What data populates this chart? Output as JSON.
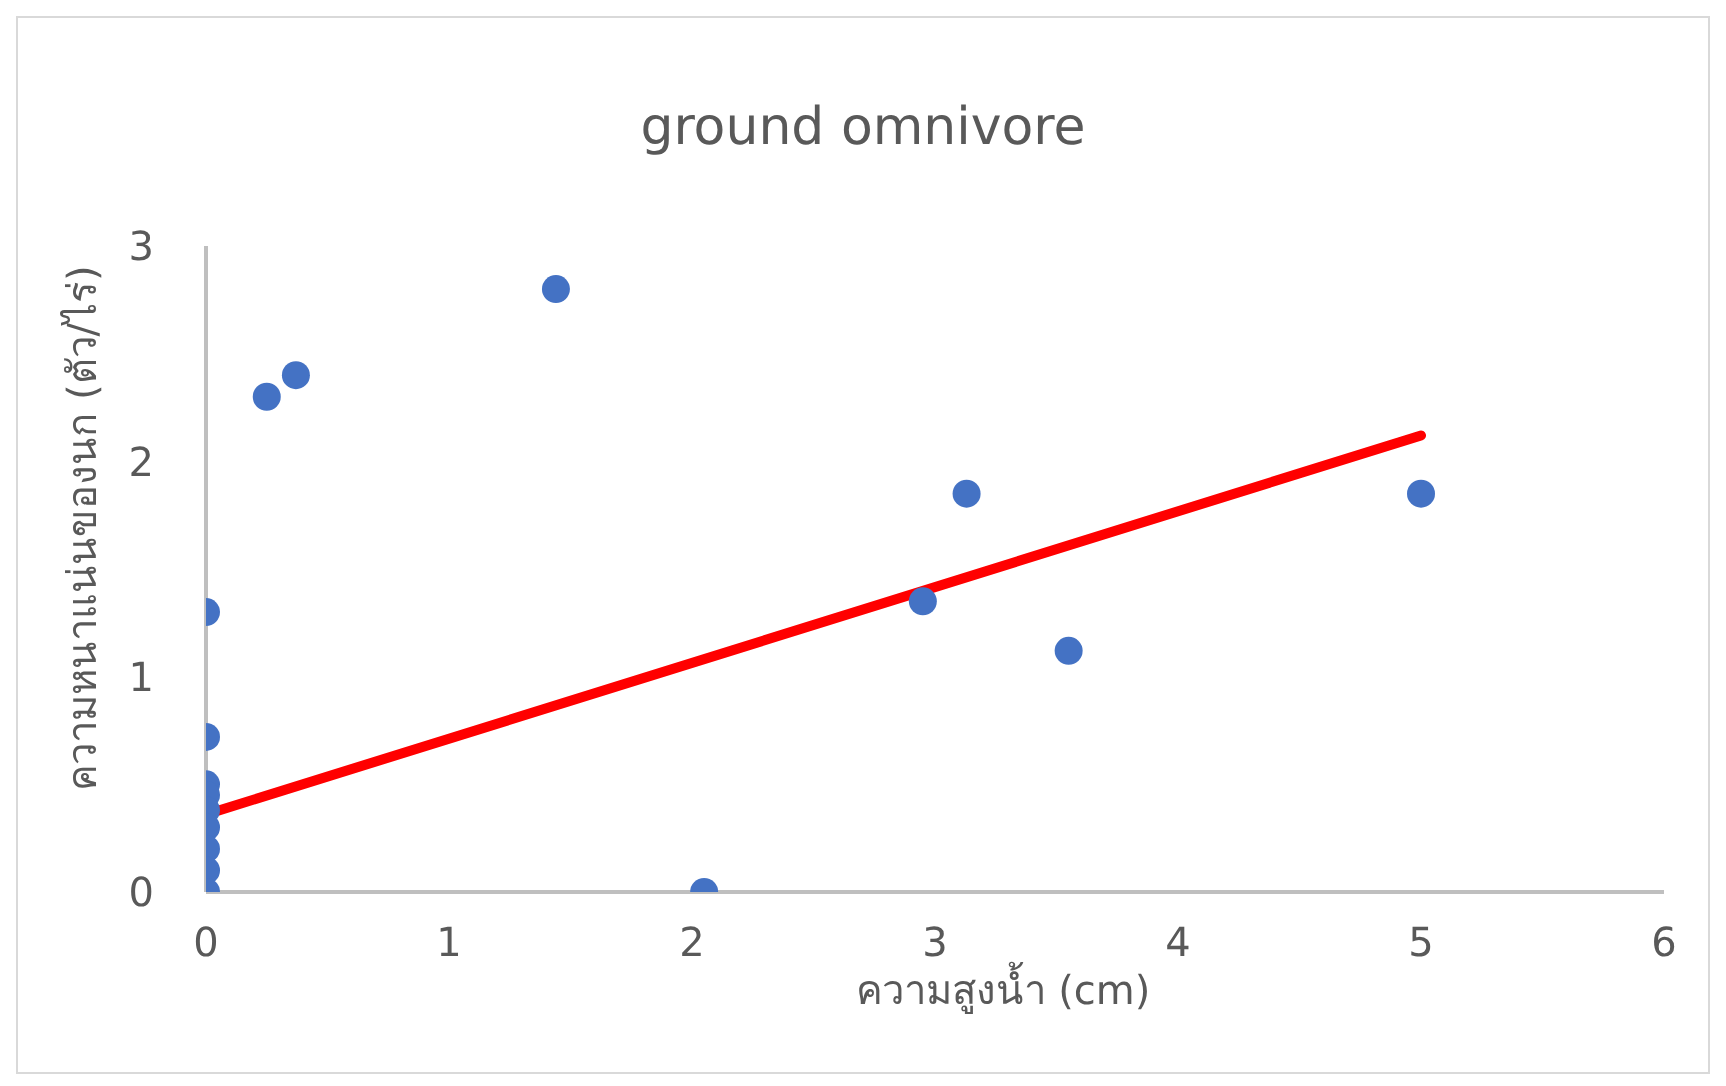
{
  "chart_data": {
    "type": "scatter",
    "title": "ground omnivore",
    "xlabel": "ความสูงน้ำ (cm)",
    "ylabel": "ความหนาแน่นของนก (ตัว/ไร่)",
    "xlim": [
      0,
      6
    ],
    "ylim": [
      0,
      3
    ],
    "xticks": [
      0,
      1,
      2,
      3,
      4,
      5,
      6
    ],
    "yticks": [
      0,
      1,
      2,
      3
    ],
    "grid": false,
    "marker": "circle",
    "series": [
      {
        "color": "#4472c4",
        "x": [
          0,
          0,
          0,
          0,
          0,
          0,
          0,
          0,
          0,
          0.25,
          0.37,
          1.44,
          2.05,
          2.95,
          3.13,
          3.55,
          5.0
        ],
        "values": [
          1.3,
          0.72,
          0.5,
          0.45,
          0.38,
          0.3,
          0.2,
          0.1,
          0,
          2.3,
          2.4,
          2.8,
          0,
          1.35,
          1.85,
          1.12,
          1.85
        ]
      },
      {
        "type": "line",
        "color": "#ff0000",
        "marker": "none",
        "x": [
          0,
          5
        ],
        "values": [
          0.36,
          2.12
        ]
      }
    ]
  }
}
